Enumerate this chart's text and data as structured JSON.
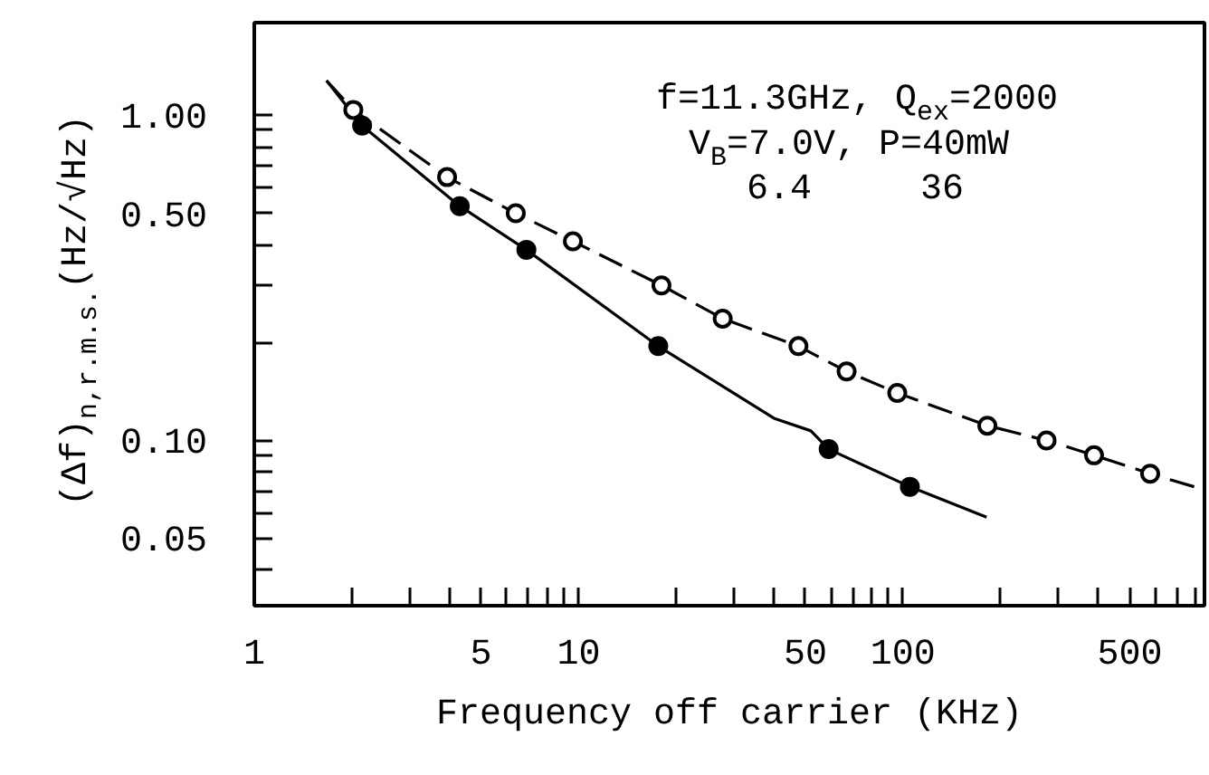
{
  "chart_data": {
    "type": "line",
    "xlabel": "Frequency off carrier (KHz)",
    "ylabel": "(Δf)$_{n,r.m.s.}$(Hz/√Hz)",
    "annotations": [
      "f=11.3GHz, Q$_{ex}$=2000",
      "V$_{B}$=7.0V, P=40mW",
      "6.4     36"
    ],
    "log": "xy",
    "xlim": [
      1,
      850
    ],
    "ylim": [
      0.031,
      1.93
    ],
    "xticks": [
      1,
      {
        "value": 2,
        "label": null
      },
      {
        "value": 3,
        "label": null
      },
      {
        "value": 4,
        "label": null
      },
      5,
      {
        "value": 6,
        "label": null
      },
      {
        "value": 7,
        "label": null
      },
      {
        "value": 8,
        "label": null
      },
      {
        "value": 9,
        "label": null
      },
      10,
      {
        "value": 20,
        "label": null
      },
      {
        "value": 30,
        "label": null
      },
      {
        "value": 40,
        "label": null
      },
      50,
      {
        "value": 60,
        "label": null
      },
      {
        "value": 70,
        "label": null
      },
      {
        "value": 80,
        "label": null
      },
      {
        "value": 90,
        "label": null
      },
      100,
      {
        "value": 200,
        "label": null
      },
      {
        "value": 300,
        "label": null
      },
      {
        "value": 400,
        "label": null
      },
      500,
      {
        "value": 600,
        "label": null
      },
      {
        "value": 700,
        "label": null
      },
      {
        "value": 800,
        "label": null
      }
    ],
    "yticks": [
      {
        "value": 0.04,
        "label": null
      },
      {
        "value": 0.05,
        "label": "0.05"
      },
      {
        "value": 0.06,
        "label": null
      },
      {
        "value": 0.07,
        "label": null
      },
      {
        "value": 0.08,
        "label": null
      },
      {
        "value": 0.09,
        "label": null
      },
      {
        "value": 0.1,
        "label": "0.10"
      },
      {
        "value": 0.2,
        "label": null
      },
      {
        "value": 0.3,
        "label": null
      },
      {
        "value": 0.4,
        "label": null
      },
      {
        "value": 0.5,
        "label": "0.50"
      },
      {
        "value": 0.6,
        "label": null
      },
      {
        "value": 0.7,
        "label": null
      },
      {
        "value": 0.8,
        "label": null
      },
      {
        "value": 0.9,
        "label": null
      },
      {
        "value": 1,
        "label": "1.00"
      }
    ],
    "series": [
      {
        "color": "#000000",
        "line_style": "dashed",
        "x": [
          1.67,
          2.02,
          3.93,
          6.4,
          9.6,
          18,
          27.8,
          47.6,
          67,
          96,
          182,
          277,
          388,
          578,
          790
        ],
        "values": [
          1.28,
          1.04,
          0.646,
          0.5,
          0.41,
          0.3,
          0.237,
          0.195,
          0.163,
          0.14,
          0.111,
          0.1,
          0.09,
          0.079,
          0.072
        ]
      },
      {
        "color": "#000000",
        "line_style": "solid",
        "x": [
          1.67,
          2.15,
          4.3,
          6.9,
          17.6,
          40,
          52,
          59,
          105,
          181
        ],
        "values": [
          1.28,
          0.93,
          0.526,
          0.386,
          0.195,
          0.117,
          0.107,
          0.094,
          0.072,
          0.058
        ]
      },
      {
        "type": "scatter",
        "color": "#ffffff",
        "marker": "circle",
        "x": [
          2.02,
          3.93,
          6.4,
          9.6,
          18,
          27.8,
          47.6,
          67,
          96,
          182,
          277,
          388,
          578
        ],
        "values": [
          1.04,
          0.646,
          0.5,
          0.41,
          0.3,
          0.237,
          0.195,
          0.163,
          0.14,
          0.111,
          0.1,
          0.09,
          0.079
        ]
      },
      {
        "type": "scatter",
        "color": "#000000",
        "marker": "circle",
        "x": [
          2.15,
          4.3,
          6.9,
          17.6,
          59,
          105
        ],
        "values": [
          0.93,
          0.526,
          0.386,
          0.195,
          0.094,
          0.072
        ]
      }
    ]
  }
}
